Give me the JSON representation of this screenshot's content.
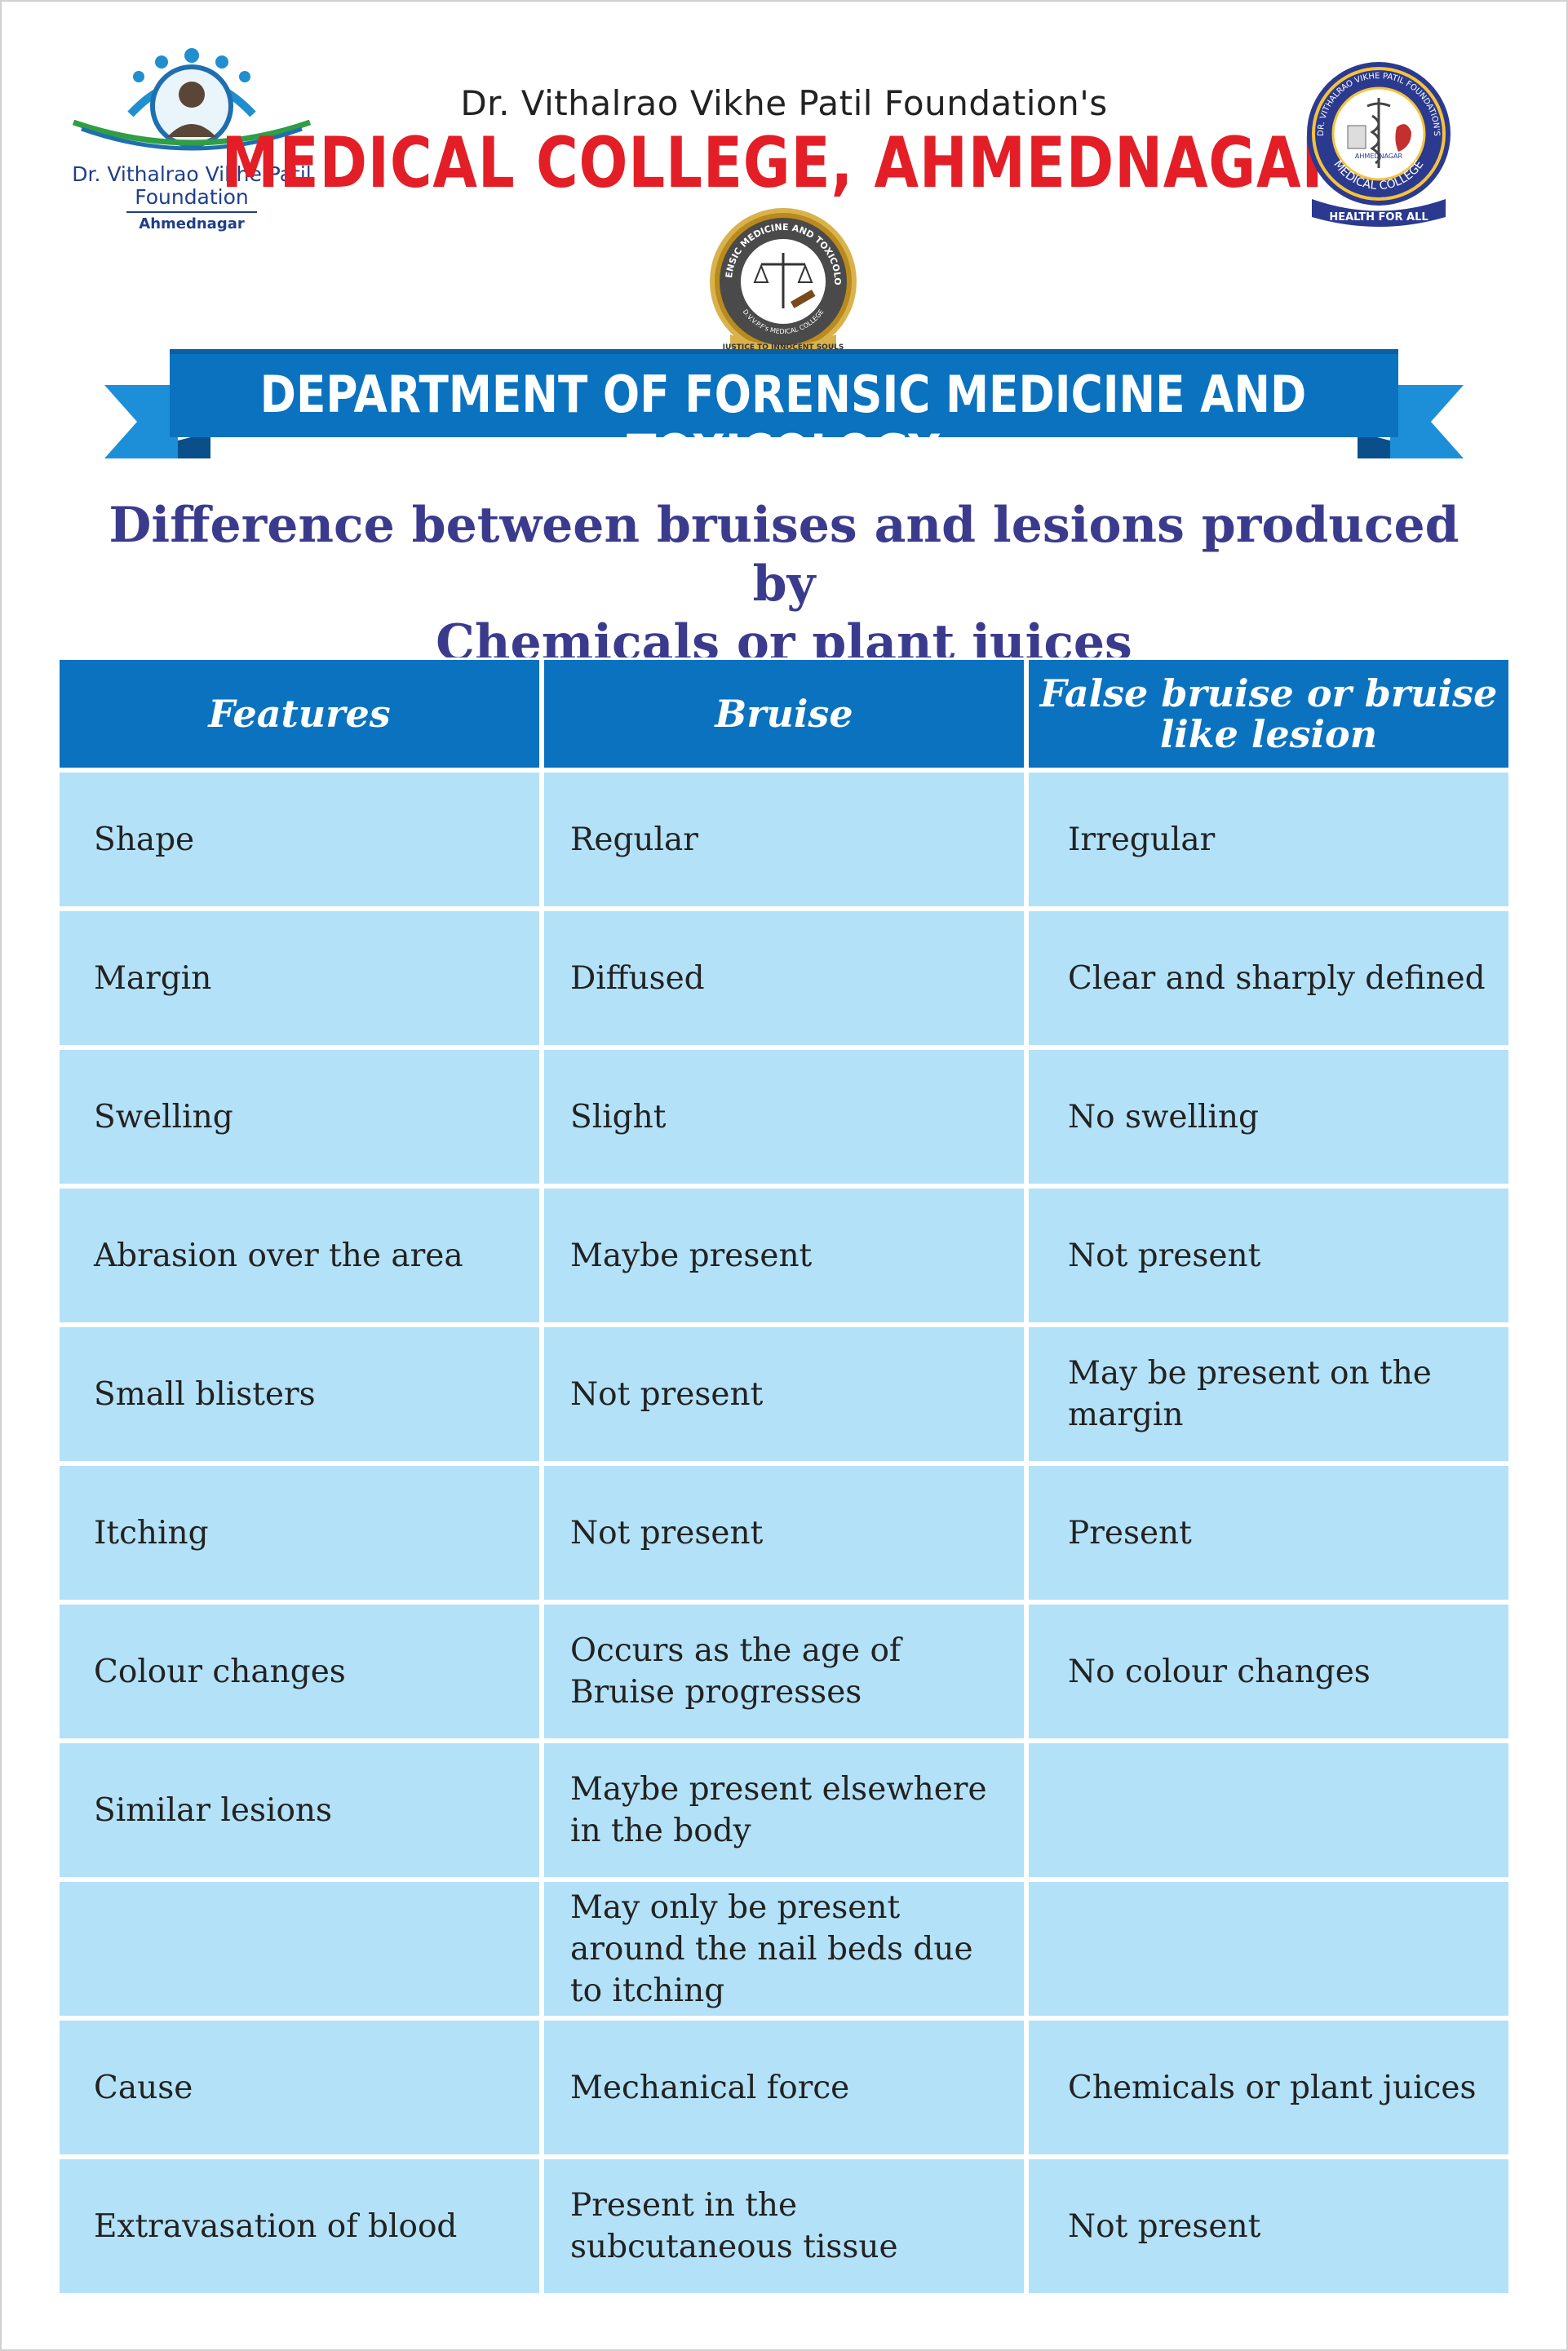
{
  "header": {
    "left_logo": {
      "name": "Dr. Vithalrao Vikhe Patil",
      "name2": "Foundation",
      "place": "Ahmednagar"
    },
    "foundation": "Dr. Vithalrao Vikhe Patil Foundation's",
    "college": "MEDICAL COLLEGE, AHMEDNAGAR",
    "right_logo": {
      "ring_text": "DR. VITHALRAO VIKHE PATIL FOUNDATION'S",
      "ring_bottom": "MEDICAL COLLEGE",
      "place": "AHMEDNAGAR",
      "motto": "HEALTH FOR ALL"
    },
    "dept_seal": {
      "ring_text": "FORENSIC MEDICINE AND TOXICOLOGY",
      "ring_bottom": "D.V.V.P.F's MEDICAL COLLEGE",
      "motto": "JUSTICE TO INNOCENT SOULS"
    },
    "department": "DEPARTMENT OF FORENSIC MEDICINE AND TOXICOLOGY"
  },
  "subtitle": {
    "line1": "Difference between bruises and lesions produced by",
    "line2": "Chemicals or plant juices"
  },
  "table": {
    "headers": [
      "Features",
      "Bruise",
      "False bruise or bruise\nlike lesion"
    ],
    "rows": [
      [
        "Shape",
        "Regular",
        "Irregular"
      ],
      [
        "Margin",
        "Diffused",
        "Clear and sharply defined"
      ],
      [
        "Swelling",
        "Slight",
        "No swelling"
      ],
      [
        "Abrasion over the area",
        "Maybe present",
        "Not present"
      ],
      [
        "Small blisters",
        "Not present",
        "May be present on the margin"
      ],
      [
        "Itching",
        "Not present",
        "Present"
      ],
      [
        "Colour changes",
        "Occurs as the age of Bruise progresses",
        "No colour changes"
      ],
      [
        "Similar lesions",
        "Maybe present elsewhere in the body",
        ""
      ],
      [
        "",
        "May only be present around the nail beds due to itching",
        ""
      ],
      [
        "Cause",
        "Mechanical force",
        "Chemicals or plant juices"
      ],
      [
        "Extravasation of blood",
        "Present in the subcutaneous tissue",
        "Not present"
      ]
    ]
  },
  "colors": {
    "brand_red": "#e31e26",
    "header_blue": "#0b72bf",
    "cell_blue": "#b3e1f7",
    "title_indigo": "#3b3b8e"
  }
}
